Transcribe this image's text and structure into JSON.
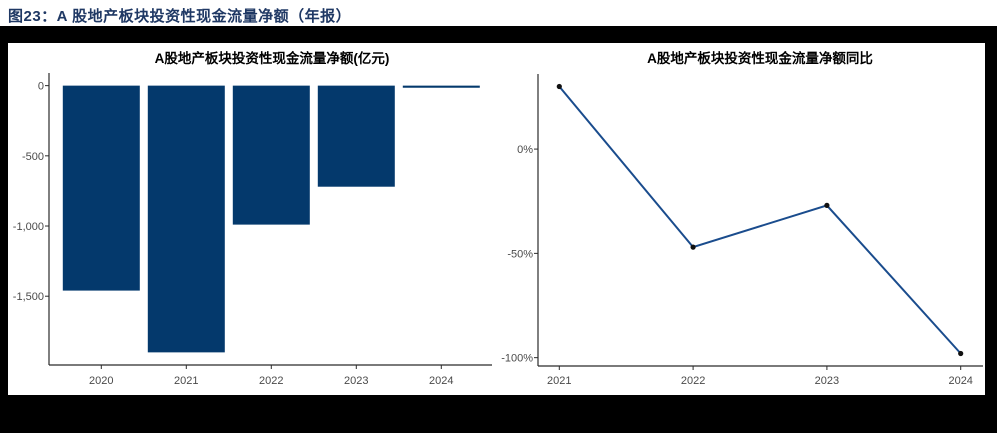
{
  "page": {
    "header": "图23：A 股地产板块投资性现金流量净额（年报）"
  },
  "colors": {
    "header_text": "#1F3864",
    "frame": "#000000",
    "background": "#FFFFFF",
    "bar": "#04396C",
    "line": "#1A4C8D",
    "point": "#111111",
    "axis": "#2B2B2B",
    "tick_text": "#4A4A4A",
    "title_text": "#000000"
  },
  "chart_data": [
    {
      "type": "bar",
      "title": "A股地产板块投资性现金流量净额(亿元)",
      "categories": [
        "2020",
        "2021",
        "2022",
        "2023",
        "2024"
      ],
      "values": [
        -1460,
        -1900,
        -990,
        -720,
        -15
      ],
      "xlabel": "",
      "ylabel": "",
      "ylim": [
        -1990,
        90
      ],
      "yticks": [
        {
          "v": 0,
          "label": "0"
        },
        {
          "v": -500,
          "label": "-500"
        },
        {
          "v": -1000,
          "label": "-1,000"
        },
        {
          "v": -1500,
          "label": "-1,500"
        }
      ],
      "grid": false,
      "legend": "none"
    },
    {
      "type": "line",
      "title": "A股地产板块投资性现金流量净额同比",
      "categories": [
        "2021",
        "2022",
        "2023",
        "2024"
      ],
      "values": [
        30,
        -47,
        -27,
        -98
      ],
      "unit": "%",
      "xlabel": "",
      "ylabel": "",
      "ylim": [
        -104,
        36
      ],
      "yticks": [
        {
          "v": 0,
          "label": "0%"
        },
        {
          "v": -50,
          "label": "-50%"
        },
        {
          "v": -100,
          "label": "-100%"
        }
      ],
      "grid": false,
      "legend": "none"
    }
  ]
}
